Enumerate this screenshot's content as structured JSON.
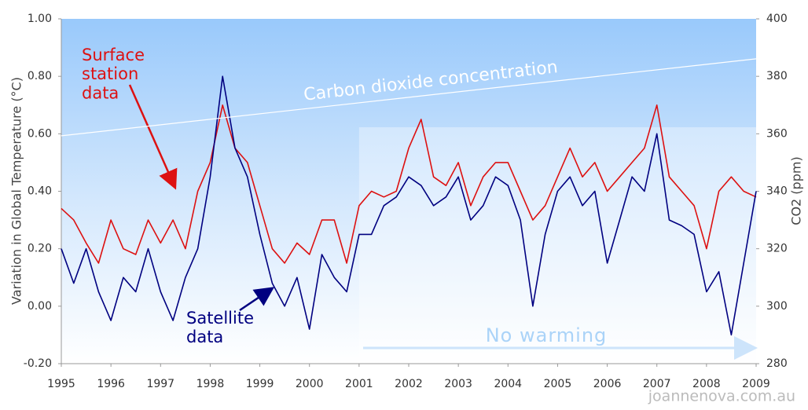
{
  "chart_data": {
    "type": "line",
    "y_label": "Variation in Global Temperature (°C)",
    "y2_label": "CO2 (ppm)",
    "annotations": [
      "Carbon dioxide concentration",
      "No warming"
    ],
    "watermark": "joannenova.com.au",
    "xlim": [
      1995,
      2009
    ],
    "xticks": [
      1995,
      1996,
      1997,
      1998,
      1999,
      2000,
      2001,
      2002,
      2003,
      2004,
      2005,
      2006,
      2007,
      2008,
      2009
    ],
    "ylim": [
      -0.2,
      1.0
    ],
    "yticks": [
      {
        "value": -0.2,
        "label": "-0.20"
      },
      {
        "value": 0,
        "label": "0.00"
      },
      {
        "value": 0.2,
        "label": "0.20"
      },
      {
        "value": 0.4,
        "label": "0.40"
      },
      {
        "value": 0.6,
        "label": "0.60"
      },
      {
        "value": 0.8,
        "label": "0.80"
      },
      {
        "value": 1.0,
        "label": "1.00"
      }
    ],
    "y2lim": [
      280,
      400
    ],
    "y2ticks": [
      280,
      300,
      320,
      340,
      360,
      380,
      400
    ],
    "grid": false,
    "x": [
      1995,
      1995.25,
      1995.5,
      1995.75,
      1996,
      1996.25,
      1996.5,
      1996.75,
      1997,
      1997.25,
      1997.5,
      1997.75,
      1998,
      1998.25,
      1998.5,
      1998.75,
      1999,
      1999.25,
      1999.5,
      1999.75,
      2000,
      2000.25,
      2000.5,
      2000.75,
      2001,
      2001.25,
      2001.5,
      2001.75,
      2002,
      2002.25,
      2002.5,
      2002.75,
      2003,
      2003.25,
      2003.5,
      2003.75,
      2004,
      2004.25,
      2004.5,
      2004.75,
      2005,
      2005.25,
      2005.5,
      2005.75,
      2006,
      2006.25,
      2006.5,
      2006.75,
      2007,
      2007.25,
      2007.5,
      2007.75,
      2008,
      2008.25,
      2008.5,
      2008.75,
      2009
    ],
    "series": [
      {
        "name": "Surface station data",
        "color": "#dd1111",
        "values": [
          0.34,
          0.3,
          0.22,
          0.15,
          0.3,
          0.2,
          0.18,
          0.3,
          0.22,
          0.3,
          0.2,
          0.4,
          0.5,
          0.7,
          0.55,
          0.5,
          0.35,
          0.2,
          0.15,
          0.22,
          0.18,
          0.3,
          0.3,
          0.15,
          0.35,
          0.4,
          0.38,
          0.4,
          0.55,
          0.65,
          0.45,
          0.42,
          0.5,
          0.35,
          0.45,
          0.5,
          0.5,
          0.4,
          0.3,
          0.35,
          0.45,
          0.55,
          0.45,
          0.5,
          0.4,
          0.45,
          0.5,
          0.55,
          0.7,
          0.45,
          0.4,
          0.35,
          0.2,
          0.4,
          0.45,
          0.4,
          0.38
        ]
      },
      {
        "name": "Satellite data",
        "color": "#000080",
        "values": [
          0.2,
          0.08,
          0.2,
          0.05,
          -0.05,
          0.1,
          0.05,
          0.2,
          0.05,
          -0.05,
          0.1,
          0.2,
          0.45,
          0.8,
          0.55,
          0.45,
          0.25,
          0.08,
          0.0,
          0.1,
          -0.08,
          0.18,
          0.1,
          0.05,
          0.25,
          0.25,
          0.35,
          0.38,
          0.45,
          0.42,
          0.35,
          0.38,
          0.45,
          0.3,
          0.35,
          0.45,
          0.42,
          0.3,
          0.0,
          0.25,
          0.4,
          0.45,
          0.35,
          0.4,
          0.15,
          0.3,
          0.45,
          0.4,
          0.6,
          0.3,
          0.28,
          0.25,
          0.05,
          0.12,
          -0.1,
          0.15,
          0.4
        ]
      },
      {
        "name": "CO2",
        "color": "#ffffff",
        "axis": "y2",
        "x": [
          1995,
          2009
        ],
        "values": [
          359.3,
          386.1
        ]
      }
    ]
  }
}
